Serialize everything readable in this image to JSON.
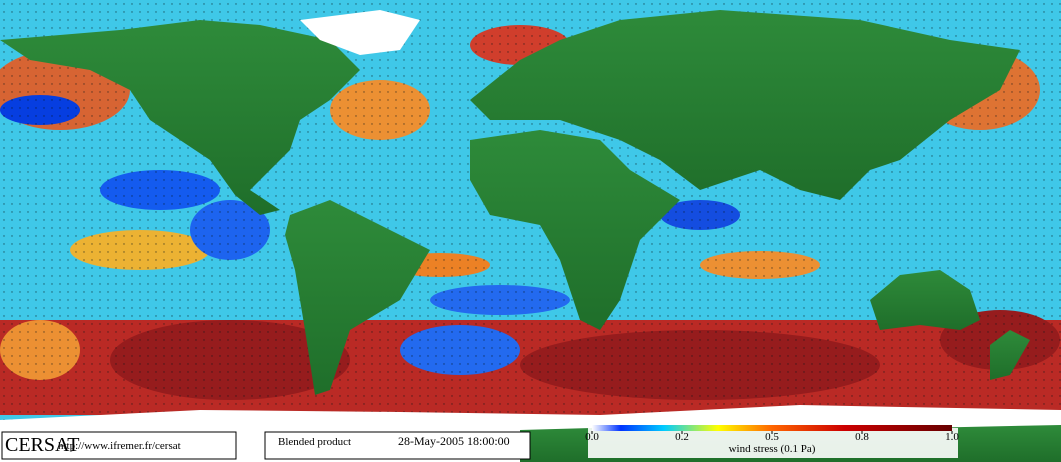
{
  "footer": {
    "logo": "CERSAT",
    "url": "http://www.ifremer.fr/cersat",
    "product": "Blended product",
    "date": "28-May-2005 18:00:00"
  },
  "legend": {
    "title": "wind stress (0.1 Pa)",
    "range": [
      0,
      1
    ],
    "ticks": [
      {
        "value": 0,
        "label": "0.0"
      },
      0.2,
      0.5,
      0.8,
      {
        "value": 1,
        "label": "1.0"
      }
    ]
  }
}
